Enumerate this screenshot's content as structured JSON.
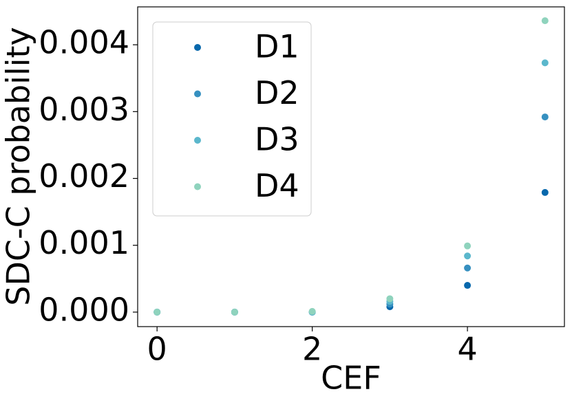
{
  "chart_data": {
    "type": "scatter",
    "x_label": "CEF",
    "y_label": "SDC-C probability",
    "x": [
      0,
      1,
      2,
      3,
      4,
      5
    ],
    "series": [
      {
        "name": "D1",
        "color": "#0868ac",
        "values": [
          0,
          0,
          0,
          8e-05,
          0.0004,
          0.00179
        ]
      },
      {
        "name": "D2",
        "color": "#3690c0",
        "values": [
          0,
          0,
          0,
          0.00012,
          0.00066,
          0.00292
        ]
      },
      {
        "name": "D3",
        "color": "#5bb7cc",
        "values": [
          0,
          0,
          0,
          0.00016,
          0.00084,
          0.00373
        ]
      },
      {
        "name": "D4",
        "color": "#8fd3bd",
        "values": [
          0,
          0,
          1e-05,
          0.0002,
          0.00099,
          0.00436
        ]
      }
    ],
    "xlim": [
      -0.25,
      5.25
    ],
    "ylim": [
      -0.000217,
      0.004567
    ],
    "xticks": [
      0,
      2,
      4
    ],
    "yticks": [
      {
        "value": 0,
        "label": "0.000"
      },
      {
        "value": 0.001,
        "label": "0.001"
      },
      {
        "value": 0.002,
        "label": "0.002"
      },
      {
        "value": 0.003,
        "label": "0.003"
      },
      {
        "value": 0.004,
        "label": "0.004"
      }
    ],
    "legend": "upper left"
  }
}
